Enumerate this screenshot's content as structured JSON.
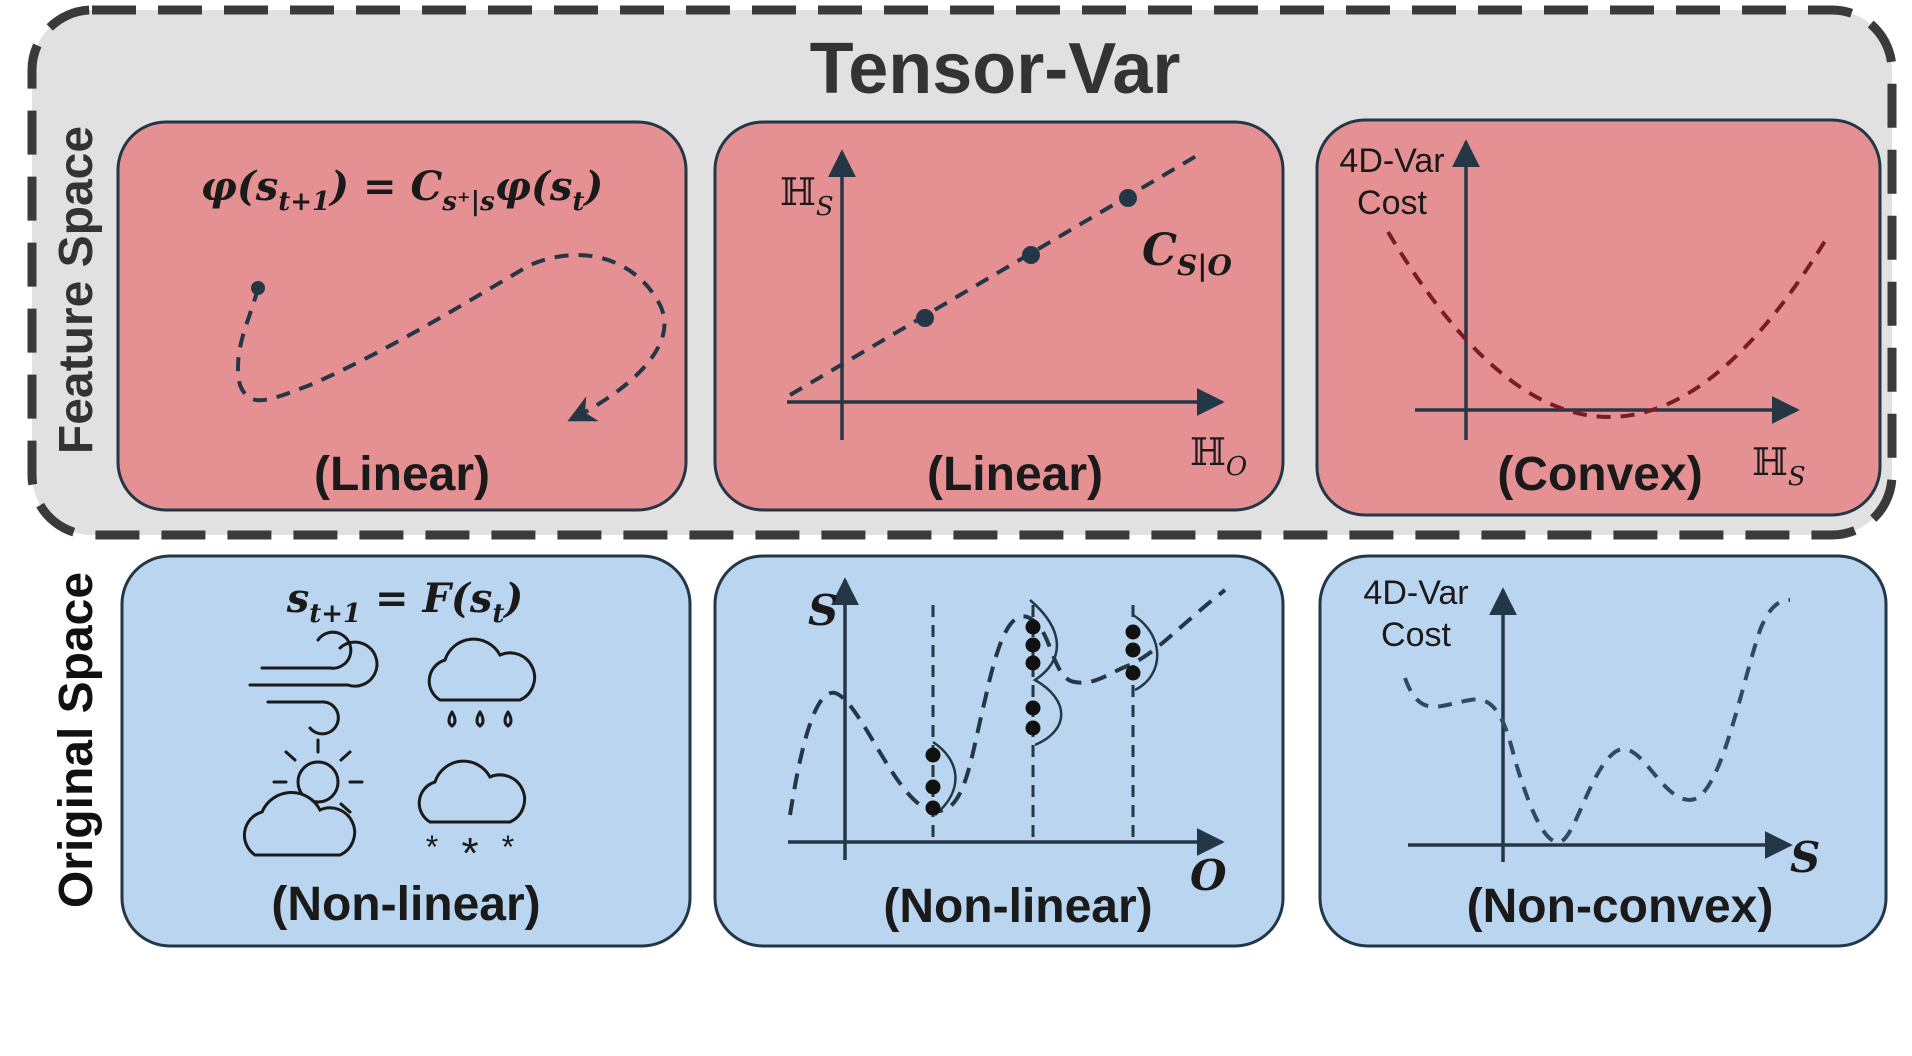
{
  "title": "Tensor-Var",
  "rows": {
    "feature": "Feature Space",
    "original": "Original Space"
  },
  "feature_panels": {
    "dynamics": {
      "equation": "φ(sₜ₊₁) = Cₛ⁺₍ₛ φ(sₜ)",
      "eq_lhs": "φ(s",
      "eq_lhs_sub": "t+1",
      "eq_mid": ") = ",
      "eq_C": "C",
      "eq_C_sub": "s⁺|s",
      "eq_rhs": "φ(s",
      "eq_rhs_sub": "t",
      "eq_end": ")",
      "caption": "(Linear)"
    },
    "observation": {
      "y_axis": "ℍ",
      "y_sub": "S",
      "x_axis": "ℍ",
      "x_sub": "O",
      "line_label": "C",
      "line_label_sub": "S|O",
      "caption": "(Linear)"
    },
    "cost": {
      "y_label_1": "4D-Var",
      "y_label_2": "Cost",
      "x_axis": "ℍ",
      "x_sub": "S",
      "caption": "(Convex)"
    }
  },
  "original_panels": {
    "dynamics": {
      "eq_lhs": "s",
      "eq_lhs_sub": "t+1",
      "eq_mid": " = F(s",
      "eq_sub": "t",
      "eq_end": ")",
      "icons": [
        "wind-icon",
        "rain-cloud-icon",
        "partly-sunny-icon",
        "snow-cloud-icon"
      ],
      "caption": "(Non-linear)"
    },
    "observation": {
      "y_axis": "S",
      "x_axis": "O",
      "caption": "(Non-linear)"
    },
    "cost": {
      "y_label_1": "4D-Var",
      "y_label_2": "Cost",
      "x_axis": "S",
      "caption": "(Non-convex)"
    }
  },
  "colors": {
    "feature_panel": "#e59194",
    "original_panel": "#bad5ef",
    "outer_box": "#e1e1e1",
    "stroke": "#243746",
    "convex_curve": "#7a1c24",
    "nonconvex_curve": "#2f4b60"
  }
}
